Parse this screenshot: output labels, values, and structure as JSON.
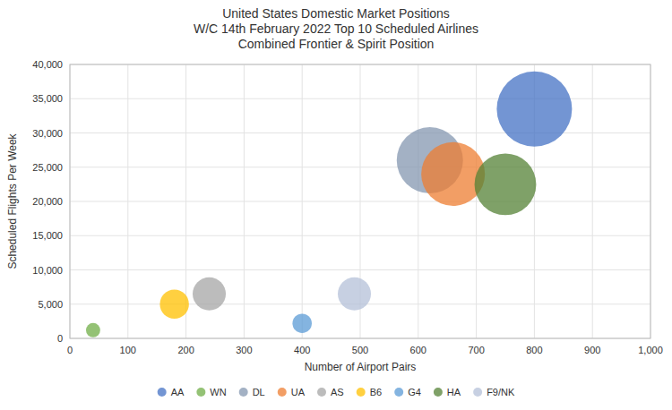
{
  "chart_data": {
    "type": "bubble",
    "title": "United States Domestic Market Positions\nW/C 14th February 2022 Top 10 Scheduled Airlines\nCombined Frontier & Spirit Position",
    "x_label": "Number of Airport Pairs",
    "y_label": "Scheduled Flights Per Week",
    "series": [
      {
        "name": "AA",
        "color": "#4472C4",
        "x": [
          800
        ],
        "values": [
          33500
        ],
        "sizes": [
          33500
        ]
      },
      {
        "name": "WN",
        "color": "#70AD47",
        "x": [
          40
        ],
        "values": [
          1200
        ],
        "sizes": [
          1200
        ]
      },
      {
        "name": "DL",
        "color": "#8497B0",
        "x": [
          620
        ],
        "values": [
          26000
        ],
        "sizes": [
          26000
        ]
      },
      {
        "name": "UA",
        "color": "#ED7D31",
        "x": [
          660
        ],
        "values": [
          24000
        ],
        "sizes": [
          24000
        ]
      },
      {
        "name": "AS",
        "color": "#A5A5A5",
        "x": [
          240
        ],
        "values": [
          6500
        ],
        "sizes": [
          6500
        ]
      },
      {
        "name": "B6",
        "color": "#FFC000",
        "x": [
          180
        ],
        "values": [
          5000
        ],
        "sizes": [
          5000
        ]
      },
      {
        "name": "G4",
        "color": "#5B9BD5",
        "x": [
          400
        ],
        "values": [
          2200
        ],
        "sizes": [
          2200
        ]
      },
      {
        "name": "HA",
        "color": "#548235",
        "x": [
          750
        ],
        "values": [
          22500
        ],
        "sizes": [
          22500
        ]
      },
      {
        "name": "F9/NK",
        "color": "#B4C0D8",
        "x": [
          490
        ],
        "values": [
          6500
        ],
        "sizes": [
          6500
        ]
      }
    ],
    "xlim": [
      0,
      1000
    ],
    "ylim": [
      0,
      40000
    ],
    "xticks": [
      0,
      100,
      200,
      300,
      400,
      500,
      600,
      700,
      800,
      900,
      {
        "value": 1000,
        "label": "1,000"
      }
    ],
    "yticks": [
      0,
      {
        "value": 5000,
        "label": "5,000"
      },
      {
        "value": 10000,
        "label": "10,000"
      },
      {
        "value": 15000,
        "label": "15,000"
      },
      {
        "value": 20000,
        "label": "20,000"
      },
      {
        "value": 25000,
        "label": "25,000"
      },
      {
        "value": 30000,
        "label": "30,000"
      },
      {
        "value": 35000,
        "label": "35,000"
      },
      {
        "value": 40000,
        "label": "40,000"
      }
    ],
    "grid": true,
    "legend": "bottom"
  }
}
